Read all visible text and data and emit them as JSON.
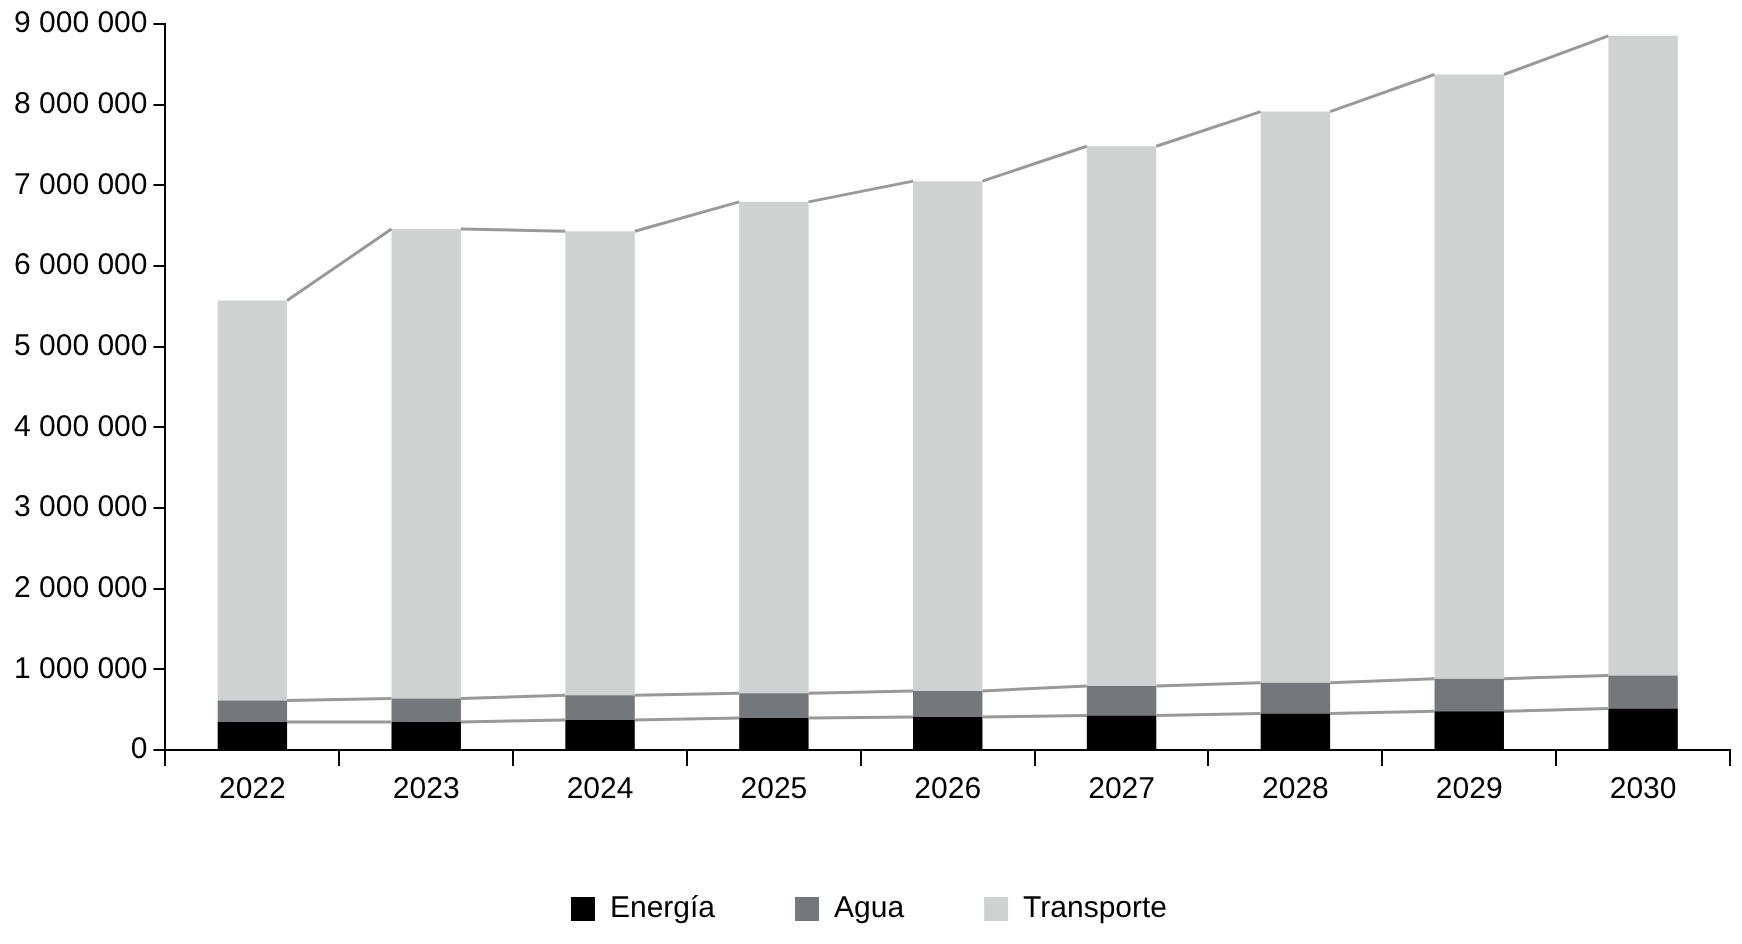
{
  "chart_data": {
    "type": "bar",
    "stacked": true,
    "categories": [
      "2022",
      "2023",
      "2024",
      "2025",
      "2026",
      "2027",
      "2028",
      "2029",
      "2030"
    ],
    "series": [
      {
        "name": "Energía",
        "color": "#000000",
        "values": [
          347000,
          347000,
          372000,
          397000,
          409000,
          429000,
          454000,
          479000,
          513000
        ]
      },
      {
        "name": "Agua",
        "color": "#75787b",
        "values": [
          266000,
          291000,
          308000,
          308000,
          323000,
          365000,
          380000,
          405000,
          410000
        ]
      },
      {
        "name": "Transporte",
        "color": "#d0d2d1",
        "values": [
          4960000,
          5820000,
          5750000,
          6090000,
          6320000,
          6690000,
          7080000,
          7490000,
          7930000
        ]
      }
    ],
    "ylim": [
      0,
      9000000
    ],
    "yticks": [
      0,
      1000000,
      2000000,
      3000000,
      4000000,
      5000000,
      6000000,
      7000000,
      8000000,
      9000000
    ],
    "grid": false,
    "legend": "bottom"
  }
}
